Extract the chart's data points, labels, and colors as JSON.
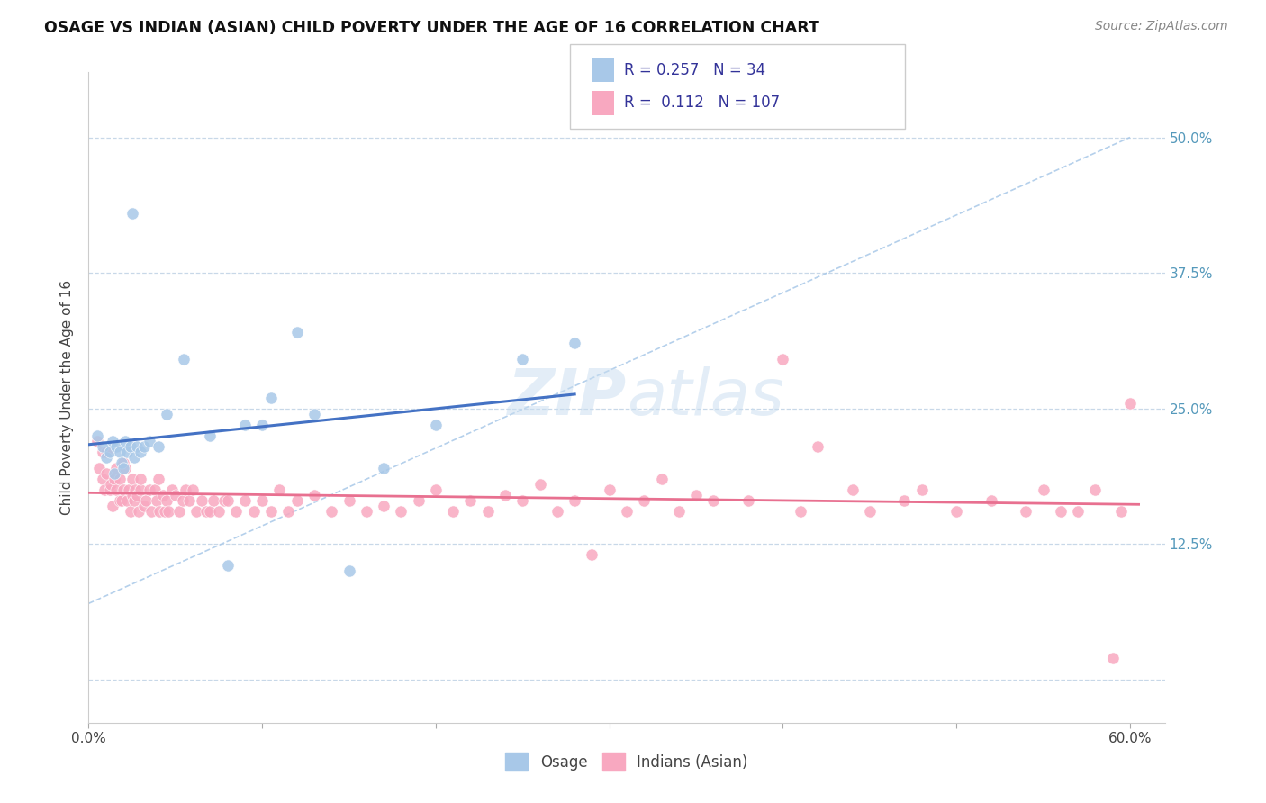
{
  "title": "OSAGE VS INDIAN (ASIAN) CHILD POVERTY UNDER THE AGE OF 16 CORRELATION CHART",
  "source": "Source: ZipAtlas.com",
  "ylabel": "Child Poverty Under the Age of 16",
  "xlim": [
    0.0,
    0.62
  ],
  "ylim": [
    -0.04,
    0.56
  ],
  "legend_R_osage": "0.257",
  "legend_N_osage": "34",
  "legend_R_indian": "0.112",
  "legend_N_indian": "107",
  "osage_color": "#a8c8e8",
  "indian_color": "#f8a8c0",
  "osage_line_color": "#4472c4",
  "indian_line_color": "#e87090",
  "dash_line_color": "#a8c8e8",
  "watermark_color": "#c8ddf0",
  "background_color": "#ffffff",
  "grid_color": "#c8d8e8",
  "right_tick_color": "#5599bb",
  "title_color": "#111111",
  "source_color": "#888888",
  "osage_x": [
    0.005,
    0.008,
    0.01,
    0.012,
    0.014,
    0.015,
    0.016,
    0.018,
    0.019,
    0.02,
    0.021,
    0.022,
    0.024,
    0.025,
    0.026,
    0.028,
    0.03,
    0.032,
    0.035,
    0.04,
    0.045,
    0.055,
    0.07,
    0.08,
    0.09,
    0.1,
    0.105,
    0.12,
    0.13,
    0.15,
    0.17,
    0.2,
    0.25,
    0.28
  ],
  "osage_y": [
    0.225,
    0.215,
    0.205,
    0.21,
    0.22,
    0.19,
    0.215,
    0.21,
    0.2,
    0.195,
    0.22,
    0.21,
    0.215,
    0.43,
    0.205,
    0.215,
    0.21,
    0.215,
    0.22,
    0.215,
    0.245,
    0.295,
    0.225,
    0.105,
    0.235,
    0.235,
    0.26,
    0.32,
    0.245,
    0.1,
    0.195,
    0.235,
    0.295,
    0.31
  ],
  "indian_x": [
    0.005,
    0.006,
    0.008,
    0.008,
    0.009,
    0.01,
    0.01,
    0.012,
    0.013,
    0.014,
    0.015,
    0.016,
    0.016,
    0.018,
    0.018,
    0.019,
    0.02,
    0.02,
    0.021,
    0.022,
    0.023,
    0.024,
    0.025,
    0.025,
    0.026,
    0.027,
    0.028,
    0.029,
    0.03,
    0.03,
    0.032,
    0.033,
    0.035,
    0.036,
    0.038,
    0.039,
    0.04,
    0.041,
    0.043,
    0.044,
    0.045,
    0.046,
    0.048,
    0.05,
    0.052,
    0.054,
    0.056,
    0.058,
    0.06,
    0.062,
    0.065,
    0.068,
    0.07,
    0.072,
    0.075,
    0.078,
    0.08,
    0.085,
    0.09,
    0.095,
    0.1,
    0.105,
    0.11,
    0.115,
    0.12,
    0.13,
    0.14,
    0.15,
    0.16,
    0.17,
    0.18,
    0.19,
    0.2,
    0.21,
    0.22,
    0.23,
    0.24,
    0.25,
    0.26,
    0.27,
    0.28,
    0.29,
    0.3,
    0.31,
    0.32,
    0.33,
    0.34,
    0.35,
    0.36,
    0.38,
    0.4,
    0.41,
    0.42,
    0.44,
    0.45,
    0.47,
    0.48,
    0.5,
    0.52,
    0.54,
    0.55,
    0.56,
    0.57,
    0.58,
    0.59,
    0.595,
    0.6
  ],
  "indian_y": [
    0.22,
    0.195,
    0.185,
    0.21,
    0.175,
    0.19,
    0.21,
    0.175,
    0.18,
    0.16,
    0.185,
    0.195,
    0.175,
    0.165,
    0.185,
    0.165,
    0.175,
    0.2,
    0.195,
    0.165,
    0.175,
    0.155,
    0.185,
    0.17,
    0.165,
    0.175,
    0.17,
    0.155,
    0.175,
    0.185,
    0.16,
    0.165,
    0.175,
    0.155,
    0.175,
    0.165,
    0.185,
    0.155,
    0.17,
    0.155,
    0.165,
    0.155,
    0.175,
    0.17,
    0.155,
    0.165,
    0.175,
    0.165,
    0.175,
    0.155,
    0.165,
    0.155,
    0.155,
    0.165,
    0.155,
    0.165,
    0.165,
    0.155,
    0.165,
    0.155,
    0.165,
    0.155,
    0.175,
    0.155,
    0.165,
    0.17,
    0.155,
    0.165,
    0.155,
    0.16,
    0.155,
    0.165,
    0.175,
    0.155,
    0.165,
    0.155,
    0.17,
    0.165,
    0.18,
    0.155,
    0.165,
    0.115,
    0.175,
    0.155,
    0.165,
    0.185,
    0.155,
    0.17,
    0.165,
    0.165,
    0.295,
    0.155,
    0.215,
    0.175,
    0.155,
    0.165,
    0.175,
    0.155,
    0.165,
    0.155,
    0.175,
    0.155,
    0.155,
    0.175,
    0.02,
    0.155,
    0.255
  ]
}
